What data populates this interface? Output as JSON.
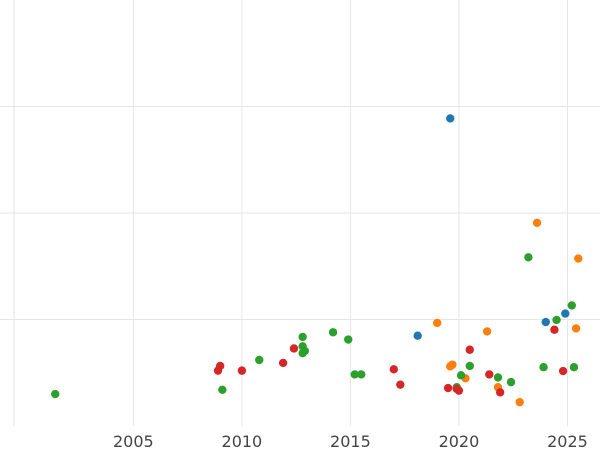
{
  "chart_data": {
    "type": "scatter",
    "title": "",
    "xlabel": "",
    "ylabel": "",
    "xlim": [
      1999.5,
      2026.5
    ],
    "ylim": [
      0,
      100
    ],
    "x_ticks": [
      2005,
      2010,
      2015,
      2020,
      2025
    ],
    "x_tick_labels": [
      "2005",
      "2010",
      "2015",
      "2020",
      "2025"
    ],
    "y_gridlines": [
      25,
      50,
      75
    ],
    "grid": true,
    "legend": "none",
    "series": [
      {
        "color": "#1f77b4",
        "points": [
          {
            "x": 2019.6,
            "y": 72.2
          },
          {
            "x": 2018.1,
            "y": 21.2
          },
          {
            "x": 2024.0,
            "y": 24.4
          },
          {
            "x": 2024.9,
            "y": 26.4
          }
        ]
      },
      {
        "color": "#ff7f0e",
        "points": [
          {
            "x": 2023.6,
            "y": 47.7
          },
          {
            "x": 2025.5,
            "y": 39.3
          },
          {
            "x": 2019.0,
            "y": 24.2
          },
          {
            "x": 2021.3,
            "y": 22.2
          },
          {
            "x": 2025.4,
            "y": 22.9
          },
          {
            "x": 2019.6,
            "y": 14.0
          },
          {
            "x": 2019.7,
            "y": 14.4
          },
          {
            "x": 2020.3,
            "y": 11.2
          },
          {
            "x": 2021.8,
            "y": 9.1
          },
          {
            "x": 2022.8,
            "y": 5.6
          }
        ]
      },
      {
        "color": "#2ca02c",
        "points": [
          {
            "x": 2001.4,
            "y": 7.5
          },
          {
            "x": 2009.1,
            "y": 8.5
          },
          {
            "x": 2010.8,
            "y": 15.5
          },
          {
            "x": 2012.8,
            "y": 20.9
          },
          {
            "x": 2012.8,
            "y": 18.7
          },
          {
            "x": 2012.8,
            "y": 17.1
          },
          {
            "x": 2012.9,
            "y": 17.6
          },
          {
            "x": 2014.2,
            "y": 22.0
          },
          {
            "x": 2014.9,
            "y": 20.3
          },
          {
            "x": 2015.2,
            "y": 12.1
          },
          {
            "x": 2015.5,
            "y": 12.1
          },
          {
            "x": 2019.9,
            "y": 9.1
          },
          {
            "x": 2020.1,
            "y": 11.9
          },
          {
            "x": 2020.5,
            "y": 14.1
          },
          {
            "x": 2021.8,
            "y": 11.4
          },
          {
            "x": 2022.4,
            "y": 10.3
          },
          {
            "x": 2023.2,
            "y": 39.6
          },
          {
            "x": 2023.9,
            "y": 13.8
          },
          {
            "x": 2024.5,
            "y": 24.9
          },
          {
            "x": 2025.2,
            "y": 28.3
          },
          {
            "x": 2025.3,
            "y": 13.8
          }
        ]
      },
      {
        "color": "#d62728",
        "points": [
          {
            "x": 2008.9,
            "y": 13.0
          },
          {
            "x": 2009.0,
            "y": 14.1
          },
          {
            "x": 2010.0,
            "y": 13.0
          },
          {
            "x": 2011.9,
            "y": 14.8
          },
          {
            "x": 2012.4,
            "y": 18.2
          },
          {
            "x": 2017.0,
            "y": 13.3
          },
          {
            "x": 2017.3,
            "y": 9.7
          },
          {
            "x": 2019.5,
            "y": 8.9
          },
          {
            "x": 2019.9,
            "y": 8.7
          },
          {
            "x": 2020.0,
            "y": 8.3
          },
          {
            "x": 2020.5,
            "y": 17.9
          },
          {
            "x": 2021.4,
            "y": 12.1
          },
          {
            "x": 2021.9,
            "y": 7.9
          },
          {
            "x": 2024.4,
            "y": 22.6
          },
          {
            "x": 2024.8,
            "y": 12.9
          }
        ]
      }
    ]
  }
}
